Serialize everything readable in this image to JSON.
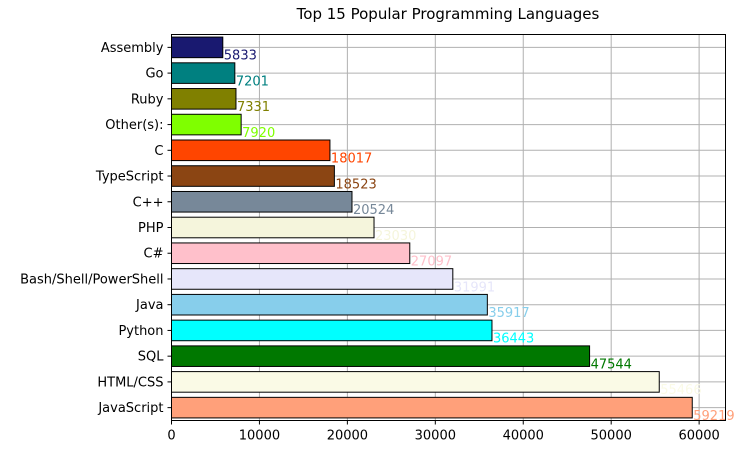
{
  "chart_data": {
    "type": "bar",
    "orientation": "horizontal",
    "title": "Top 15 Popular Programming Languages",
    "xlabel": "",
    "ylabel": "",
    "xlim": [
      0,
      63000
    ],
    "xticks": [
      "0",
      "10000",
      "20000",
      "30000",
      "40000",
      "50000",
      "60000"
    ],
    "grid": true,
    "categories": [
      "JavaScript",
      "HTML/CSS",
      "SQL",
      "Python",
      "Java",
      "Bash/Shell/PowerShell",
      "C#",
      "PHP",
      "C++",
      "TypeScript",
      "C",
      "Other(s):",
      "Ruby",
      "Go",
      "Assembly"
    ],
    "values": [
      59219,
      55466,
      47544,
      36443,
      35917,
      31991,
      27097,
      23030,
      20524,
      18523,
      18017,
      7920,
      7331,
      7201,
      5833
    ],
    "value_labels": [
      "59219",
      "55466",
      "47544",
      "36443",
      "35917",
      "31991",
      "27097",
      "23030",
      "20524",
      "18523",
      "18017",
      "7920",
      "7331",
      "7201",
      "5833"
    ],
    "colors": [
      "#ffa07a",
      "#fafae6",
      "#007800",
      "#00ffff",
      "#87ceeb",
      "#e6e6fa",
      "#ffc0cb",
      "#f5f5dc",
      "#778899",
      "#8b4513",
      "#ff4500",
      "#7fff00",
      "#808000",
      "#008080",
      "#191970"
    ]
  }
}
